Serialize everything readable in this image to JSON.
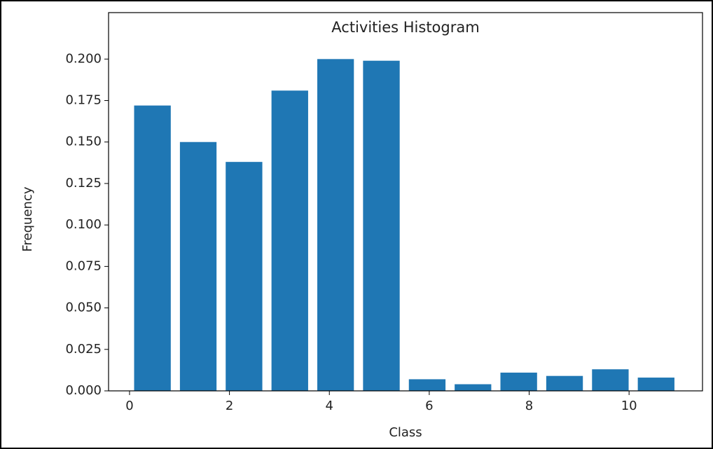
{
  "chart_data": {
    "type": "histogram",
    "title": "Activities Histogram",
    "x_label": "Class",
    "y_label": "Frequency",
    "bins": [
      0,
      0.917,
      1.833,
      2.75,
      3.667,
      4.583,
      5.5,
      6.417,
      7.333,
      8.25,
      9.167,
      10.083,
      11
    ],
    "values": [
      0.172,
      0.15,
      0.138,
      0.181,
      0.2,
      0.199,
      0.007,
      0.004,
      0.011,
      0.009,
      0.013,
      0.008
    ],
    "color": "#1f77b4",
    "xlim": [
      -0.42,
      11.47
    ],
    "xticks": [
      0,
      2,
      4,
      6,
      8,
      10
    ],
    "ylim": [
      0,
      0.228
    ],
    "yticks": [
      {
        "value": 0,
        "label": "0.000"
      },
      {
        "value": 0.025,
        "label": "0.025"
      },
      {
        "value": 0.05,
        "label": "0.050"
      },
      {
        "value": 0.075,
        "label": "0.075"
      },
      {
        "value": 0.1,
        "label": "0.100"
      },
      {
        "value": 0.125,
        "label": "0.125"
      },
      {
        "value": 0.15,
        "label": "0.150"
      },
      {
        "value": 0.175,
        "label": "0.175"
      },
      {
        "value": 0.2,
        "label": "0.200"
      }
    ]
  }
}
